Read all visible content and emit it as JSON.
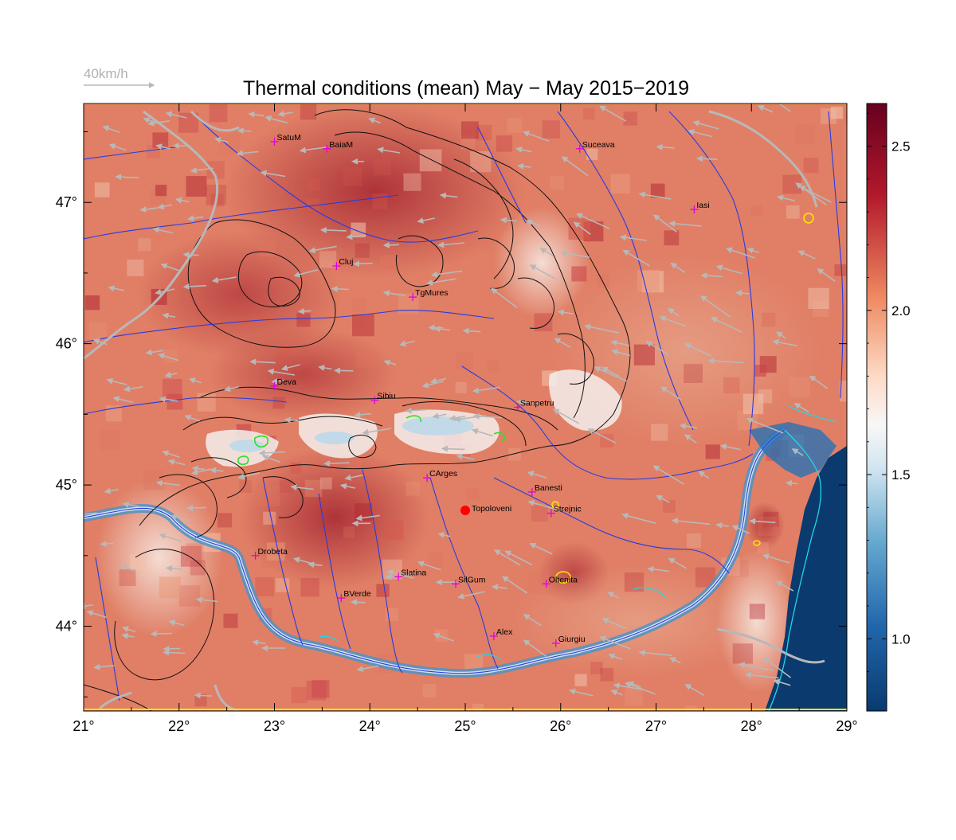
{
  "title": "Thermal conditions (mean) May − May  2015−2019",
  "wind_scale": {
    "label": "40km/h"
  },
  "map": {
    "lon_range": [
      21,
      29
    ],
    "lat_range": [
      43.4,
      47.7
    ],
    "x_ticks": [
      "21°",
      "22°",
      "23°",
      "24°",
      "25°",
      "26°",
      "27°",
      "28°",
      "29°"
    ],
    "y_ticks": [
      {
        "lat": 47,
        "label": "47°"
      },
      {
        "lat": 46,
        "label": "46°"
      },
      {
        "lat": 45,
        "label": "45°"
      },
      {
        "lat": 44,
        "label": "44°"
      }
    ],
    "cities": [
      {
        "name": "SatuM",
        "lon": 23.0,
        "lat": 47.43
      },
      {
        "name": "BaiaM",
        "lon": 23.55,
        "lat": 47.38
      },
      {
        "name": "Suceava",
        "lon": 26.2,
        "lat": 47.38
      },
      {
        "name": "Iasi",
        "lon": 27.4,
        "lat": 46.95
      },
      {
        "name": "Cluj",
        "lon": 23.65,
        "lat": 46.55
      },
      {
        "name": "TgMures",
        "lon": 24.45,
        "lat": 46.33
      },
      {
        "name": "Deva",
        "lon": 23.0,
        "lat": 45.7
      },
      {
        "name": "Sibiu",
        "lon": 24.05,
        "lat": 45.6
      },
      {
        "name": "Sanpetru",
        "lon": 25.55,
        "lat": 45.55
      },
      {
        "name": "CArges",
        "lon": 24.6,
        "lat": 45.05
      },
      {
        "name": "Banesti",
        "lon": 25.7,
        "lat": 44.95
      },
      {
        "name": "Strejnic",
        "lon": 25.9,
        "lat": 44.8
      },
      {
        "name": "Drobeta",
        "lon": 22.8,
        "lat": 44.5
      },
      {
        "name": "Slatina",
        "lon": 24.3,
        "lat": 44.35
      },
      {
        "name": "SilGum",
        "lon": 24.9,
        "lat": 44.3
      },
      {
        "name": "Oltenita",
        "lon": 25.85,
        "lat": 44.3
      },
      {
        "name": "BVerde",
        "lon": 23.7,
        "lat": 44.2
      },
      {
        "name": "Alex",
        "lon": 25.3,
        "lat": 43.93
      },
      {
        "name": "Giurgiu",
        "lon": 25.95,
        "lat": 43.88
      }
    ],
    "highlight": {
      "name": "Topoloveni",
      "lon": 25.0,
      "lat": 44.82
    },
    "city_labels": {
      "SatuM": "SatuM",
      "BaiaM": "BaiaM",
      "Suceava": "Suceava",
      "Iasi": "Iasi",
      "Cluj": "Cluj",
      "TgMures": "TgMures",
      "Deva": "Deva",
      "Sibiu": "Sibiu",
      "Sanpetru": "Sanpetru",
      "CArges": "CArges",
      "Banesti": "Banesti",
      "Strejnic": "Strejnic",
      "Drobeta": "Drobeta",
      "Slatina": "Slatina",
      "SilGum": "SilGum",
      "Oltenita": "Oltenita",
      "BVerde": "BVerde",
      "Alex": "Alex",
      "Giurgiu": "Giurgiu",
      "Topoloveni": "Topoloveni"
    }
  },
  "colorbar": {
    "range": [
      0.78,
      2.63
    ],
    "ticks": [
      {
        "value": 2.5,
        "label": "2.5"
      },
      {
        "value": 2.0,
        "label": "2.0"
      },
      {
        "value": 1.5,
        "label": "1.5"
      },
      {
        "value": 1.0,
        "label": "1.0"
      }
    ],
    "colors": [
      "#0a3a6e",
      "#2166ac",
      "#67a9cf",
      "#d1e5f0",
      "#f7f7f7",
      "#fddbc7",
      "#ef8a62",
      "#b2182b",
      "#67001f"
    ]
  }
}
